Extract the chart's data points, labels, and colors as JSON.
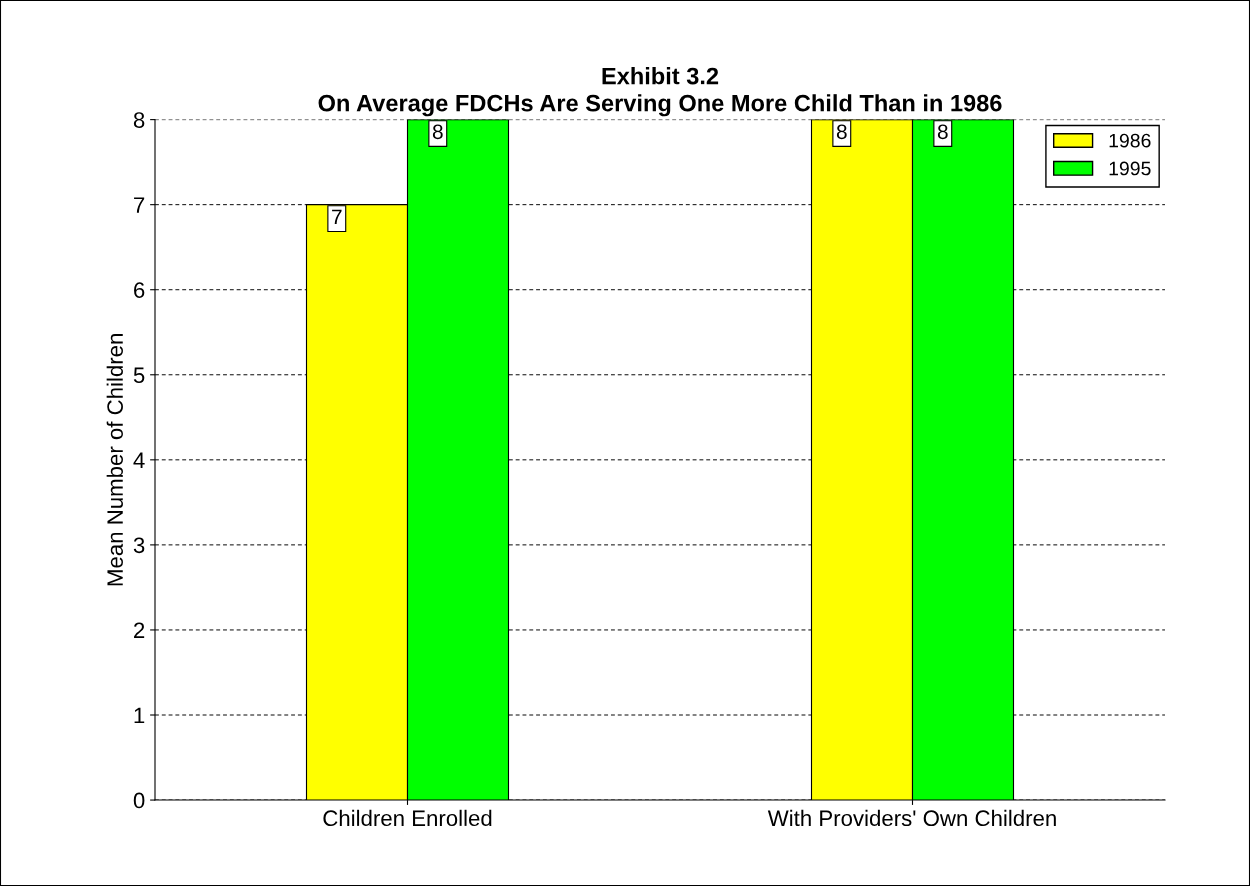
{
  "chart_data": {
    "type": "bar",
    "title": "Exhibit 3.2\nOn Average FDCHs Are Serving One More Child Than in 1986",
    "ylabel": "Mean Number of Children",
    "categories": [
      "Children Enrolled",
      "With Providers' Own Children"
    ],
    "series": [
      {
        "name": "1986",
        "color": "#ffff00",
        "values": [
          7,
          8
        ]
      },
      {
        "name": "1995",
        "color": "#00ff00",
        "values": [
          8,
          8
        ]
      }
    ],
    "ylim": [
      0,
      8
    ],
    "yticks": [
      0,
      1,
      2,
      3,
      4,
      5,
      6,
      7,
      8
    ],
    "grid": "y",
    "legend": "top right",
    "data_labels": true
  }
}
